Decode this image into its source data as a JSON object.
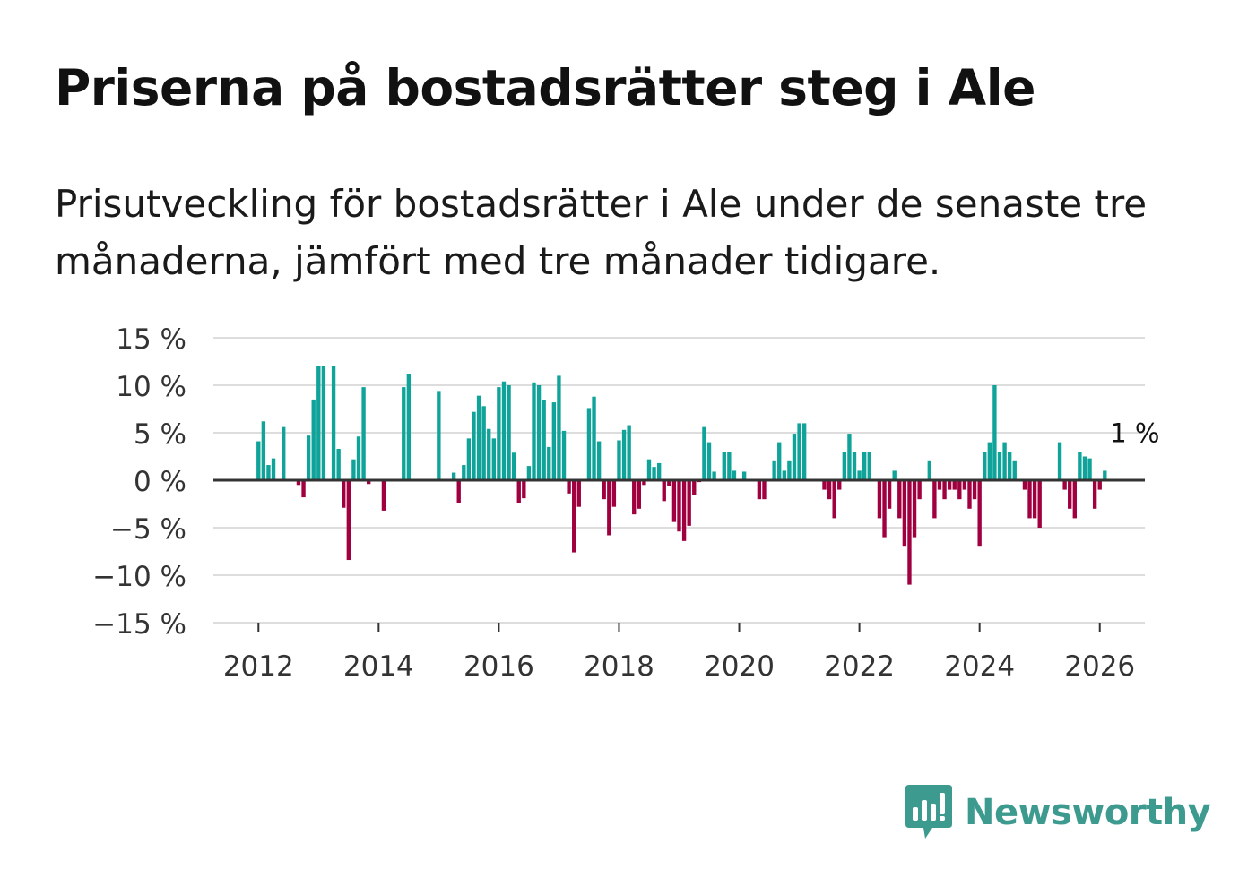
{
  "title": "Priserna på bostadsrätter steg i Ale",
  "subtitle": "Prisutveckling för bostadsrätter i Ale under de senaste tre månaderna, jämfört med tre månader tidigare.",
  "brand": {
    "name": "Newsworthy",
    "color": "#3d9a8f",
    "icon": "newsworthy-logo-icon"
  },
  "colors": {
    "positive": "#0fa39a",
    "negative": "#a0003f",
    "zero_line": "#333333",
    "grid": "#dddddd"
  },
  "chart_data": {
    "type": "bar",
    "title": "Priserna på bostadsrätter steg i Ale",
    "xlabel": "",
    "ylabel": "",
    "ylim": [
      -15,
      15
    ],
    "xlim": [
      2011.25,
      2026.75
    ],
    "y_ticks": [
      15,
      10,
      5,
      0,
      -5,
      -10,
      -15
    ],
    "y_tick_labels": [
      "15 %",
      "10 %",
      "5 %",
      "0 %",
      "−5 %",
      "−10 %",
      "−15 %"
    ],
    "x_ticks": [
      2012,
      2014,
      2016,
      2018,
      2020,
      2022,
      2024,
      2026
    ],
    "x_tick_labels": [
      "2012",
      "2014",
      "2016",
      "2018",
      "2020",
      "2022",
      "2024",
      "2026"
    ],
    "annotation": {
      "text": "1 %",
      "month_index": 175,
      "value": 1
    },
    "start": "2012-01",
    "frequency": "monthly",
    "values": [
      4.1,
      6.2,
      1.6,
      2.3,
      null,
      5.6,
      null,
      null,
      -0.5,
      -1.8,
      4.7,
      8.5,
      12.0,
      12.0,
      null,
      12.0,
      3.3,
      -2.9,
      -8.4,
      2.2,
      4.6,
      9.8,
      -0.4,
      null,
      null,
      -3.2,
      null,
      null,
      null,
      9.8,
      11.2,
      null,
      null,
      null,
      null,
      null,
      9.4,
      null,
      null,
      0.8,
      -2.4,
      1.6,
      4.4,
      7.2,
      8.9,
      7.8,
      5.4,
      4.4,
      9.8,
      10.4,
      10.0,
      2.9,
      -2.4,
      -1.9,
      1.5,
      10.3,
      10.0,
      8.4,
      3.5,
      8.2,
      11.0,
      5.2,
      -1.4,
      -7.6,
      -2.8,
      null,
      7.6,
      8.8,
      4.1,
      -2.0,
      -5.8,
      -2.8,
      4.2,
      5.3,
      5.8,
      -3.6,
      -3.0,
      -0.5,
      2.2,
      1.4,
      1.8,
      -2.2,
      -0.6,
      -4.4,
      -5.4,
      -6.4,
      -4.8,
      -1.6,
      -0.2,
      5.6,
      4.0,
      0.9,
      null,
      3.0,
      3.0,
      1.0,
      null,
      0.9,
      null,
      null,
      -2.0,
      -2.0,
      null,
      2.0,
      4.0,
      1.0,
      2.0,
      4.9,
      6.0,
      6.0,
      null,
      null,
      null,
      -1.0,
      -2.0,
      -4.0,
      -1.0,
      3.0,
      4.9,
      3.0,
      1.0,
      3.0,
      3.0,
      null,
      -4.0,
      -6.0,
      -3.0,
      1.0,
      -4.0,
      -7.0,
      -11.0,
      -6.0,
      -2.0,
      null,
      2.0,
      -4.0,
      -1.0,
      -2.0,
      -1.0,
      -1.0,
      -2.0,
      -1.0,
      -3.0,
      -2.0,
      -7.0,
      3.0,
      4.0,
      10.0,
      3.0,
      4.0,
      3.0,
      2.0,
      null,
      -1.0,
      -4.0,
      -4.0,
      -5.0,
      null,
      null,
      null,
      4.0,
      -1.0,
      -3.0,
      -4.0,
      3.0,
      2.5,
      2.3,
      -3.0,
      -1.0,
      1.0
    ]
  }
}
